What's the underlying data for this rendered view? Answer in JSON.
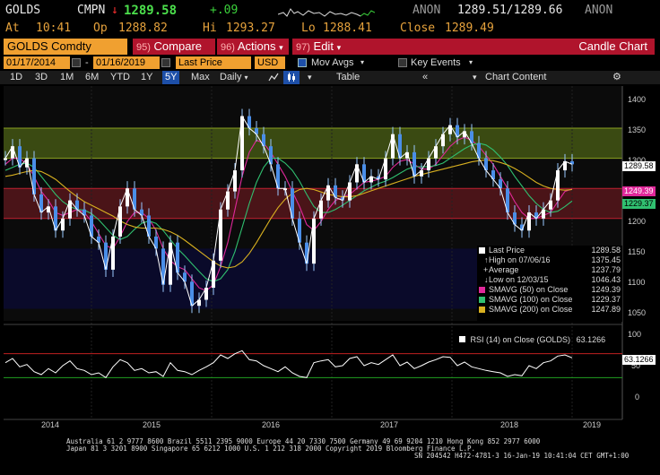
{
  "quote": {
    "ticker": "GOLDS",
    "source": "CMPN",
    "arrow": "↓",
    "last": "1289.58",
    "change": "+.09",
    "bid_source": "ANON",
    "bid_ask": "1289.51/1289.66",
    "ask_source": "ANON",
    "at_label": "At",
    "time": "10:41",
    "open_label": "Op",
    "open": "1288.82",
    "high_label": "Hi",
    "high": "1293.27",
    "low_label": "Lo",
    "low": "1288.41",
    "close_label": "Close",
    "close": "1289.49"
  },
  "titlebar": {
    "security": "GOLDS Comdty",
    "compare_num": "95)",
    "compare": "Compare",
    "actions_num": "96)",
    "actions": "Actions",
    "edit_num": "97)",
    "edit": "Edit",
    "chart_type": "Candle Chart"
  },
  "params": {
    "start_date": "01/17/2014",
    "dash": "-",
    "end_date": "01/16/2019",
    "field": "Last Price",
    "currency": "USD",
    "mov_avgs": "Mov Avgs",
    "key_events": "Key Events"
  },
  "tabs": {
    "items": [
      "1D",
      "3D",
      "1M",
      "6M",
      "YTD",
      "1Y",
      "5Y",
      "Max",
      "Daily"
    ],
    "active": "5Y",
    "table": "Table",
    "chart_content": "Chart Content"
  },
  "colors": {
    "price": "#ffffff",
    "sma50": "#e0289a",
    "sma100": "#30c070",
    "sma200": "#d8b020",
    "band_green": "#3a4a12",
    "band_red": "#4a1418",
    "band_blue": "#0a0a2a",
    "rsi_line": "#ffffff",
    "rsi_upper": "#c02020",
    "rsi_lower": "#20a020"
  },
  "chart_data": {
    "type": "line",
    "ylim": [
      1030,
      1420
    ],
    "yticks": [
      "1400",
      "1350",
      "1300",
      "1250",
      "1200",
      "1150",
      "1100",
      "1050"
    ],
    "xticks": [
      "2014",
      "2015",
      "2016",
      "2017",
      "2018",
      "2019"
    ],
    "series": [
      {
        "name": "Last Price",
        "values": [
          1300,
          1320,
          1285,
          1300,
          1240,
          1210,
          1220,
          1180,
          1200,
          1230,
          1215,
          1205,
          1170,
          1160,
          1115,
          1170,
          1220,
          1250,
          1215,
          1205,
          1170,
          1150,
          1090,
          1160,
          1110,
          1095,
          1055,
          1065,
          1085,
          1130,
          1215,
          1245,
          1280,
          1370,
          1350,
          1340,
          1320,
          1290,
          1250,
          1250,
          1200,
          1160,
          1125,
          1200,
          1230,
          1255,
          1235,
          1230,
          1260,
          1290,
          1260,
          1270,
          1265,
          1300,
          1340,
          1300,
          1310,
          1270,
          1280,
          1300,
          1320,
          1340,
          1355,
          1335,
          1345,
          1325,
          1300,
          1280,
          1265,
          1250,
          1210,
          1190,
          1180,
          1210,
          1200,
          1215,
          1230,
          1280,
          1295,
          1290
        ]
      },
      {
        "name": "SMAVG (50)",
        "values": [
          1290,
          1300,
          1300,
          1290,
          1270,
          1245,
          1230,
          1210,
          1205,
          1210,
          1215,
          1210,
          1195,
          1175,
          1155,
          1150,
          1170,
          1195,
          1210,
          1210,
          1200,
          1180,
          1150,
          1130,
          1120,
          1115,
          1100,
          1085,
          1080,
          1090,
          1120,
          1160,
          1215,
          1270,
          1310,
          1330,
          1325,
          1310,
          1290,
          1270,
          1245,
          1220,
          1190,
          1180,
          1195,
          1215,
          1230,
          1235,
          1240,
          1250,
          1260,
          1262,
          1265,
          1270,
          1285,
          1295,
          1298,
          1290,
          1282,
          1282,
          1290,
          1305,
          1320,
          1330,
          1335,
          1330,
          1320,
          1305,
          1290,
          1270,
          1250,
          1228,
          1210,
          1200,
          1200,
          1205,
          1210,
          1228,
          1245,
          1249
        ]
      },
      {
        "name": "SMAVG (100)",
        "values": [
          1280,
          1285,
          1290,
          1292,
          1285,
          1270,
          1255,
          1240,
          1228,
          1220,
          1215,
          1214,
          1208,
          1198,
          1185,
          1172,
          1165,
          1170,
          1182,
          1192,
          1196,
          1192,
          1180,
          1165,
          1150,
          1138,
          1125,
          1112,
          1100,
          1095,
          1100,
          1115,
          1145,
          1185,
          1225,
          1260,
          1285,
          1300,
          1300,
          1292,
          1280,
          1262,
          1240,
          1220,
          1210,
          1210,
          1215,
          1222,
          1230,
          1238,
          1246,
          1252,
          1258,
          1262,
          1268,
          1275,
          1282,
          1286,
          1286,
          1286,
          1288,
          1292,
          1300,
          1308,
          1316,
          1322,
          1325,
          1322,
          1314,
          1302,
          1288,
          1270,
          1254,
          1238,
          1225,
          1215,
          1210,
          1212,
          1220,
          1229
        ]
      },
      {
        "name": "SMAVG (200)",
        "values": [
          1270,
          1272,
          1275,
          1278,
          1280,
          1278,
          1272,
          1265,
          1255,
          1245,
          1236,
          1228,
          1222,
          1216,
          1210,
          1204,
          1196,
          1190,
          1186,
          1184,
          1184,
          1184,
          1182,
          1178,
          1172,
          1164,
          1155,
          1146,
          1137,
          1128,
          1121,
          1118,
          1120,
          1128,
          1142,
          1160,
          1180,
          1200,
          1218,
          1232,
          1242,
          1248,
          1250,
          1248,
          1244,
          1240,
          1238,
          1236,
          1236,
          1238,
          1242,
          1246,
          1250,
          1254,
          1258,
          1262,
          1266,
          1270,
          1273,
          1276,
          1279,
          1282,
          1285,
          1288,
          1291,
          1294,
          1296,
          1297,
          1296,
          1293,
          1289,
          1283,
          1276,
          1268,
          1260,
          1254,
          1250,
          1248,
          1247,
          1248
        ]
      }
    ],
    "rsi_ylim": [
      -10,
      110
    ],
    "rsi_yticks": [
      "100",
      "50",
      "0"
    ],
    "rsi_bands": [
      70,
      30
    ],
    "rsi_values": [
      55,
      62,
      48,
      52,
      40,
      35,
      45,
      38,
      50,
      58,
      45,
      42,
      35,
      38,
      30,
      48,
      60,
      55,
      42,
      45,
      38,
      40,
      32,
      55,
      42,
      40,
      35,
      42,
      48,
      55,
      68,
      62,
      70,
      75,
      60,
      58,
      50,
      45,
      40,
      48,
      38,
      32,
      30,
      55,
      58,
      60,
      48,
      50,
      62,
      65,
      50,
      55,
      52,
      60,
      68,
      50,
      56,
      45,
      50,
      56,
      60,
      65,
      64,
      50,
      56,
      48,
      45,
      42,
      40,
      38,
      32,
      35,
      33,
      50,
      45,
      55,
      58,
      66,
      68,
      63
    ]
  },
  "legend": {
    "last_price_label": "Last Price",
    "last_price": "1289.58",
    "high_label": "High on 07/06/16",
    "high": "1375.45",
    "average_label": "Average",
    "average": "1237.79",
    "low_label": "Low on 12/03/15",
    "low": "1046.43",
    "sma50_label": "SMAVG (50)   on Close",
    "sma50": "1249.39",
    "sma100_label": "SMAVG (100)  on Close",
    "sma100": "1229.37",
    "sma200_label": "SMAVG (200)  on Close",
    "sma200": "1247.89",
    "rsi_label": "RSI (14)   on Close (GOLDS)",
    "rsi": "63.1266"
  },
  "tags": {
    "price": "1289.58",
    "sma50": "1249.39",
    "sma100": "1229.37",
    "rsi": "63.1266"
  },
  "footer": {
    "line1": "Australia 61 2 9777 8600 Brazil 5511 2395 9000 Europe 44 20 7330 7500 Germany 49 69 9204 1210 Hong Kong 852 2977 6000",
    "line2": "Japan 81 3 3201 8900         Singapore 65 6212 1000         U.S. 1 212 318 2000              Copyright 2019 Bloomberg Finance L.P.",
    "line3": "SN 204542 H472-4781-3 16-Jan-19 10:41:04 CET  GMT+1:00"
  }
}
